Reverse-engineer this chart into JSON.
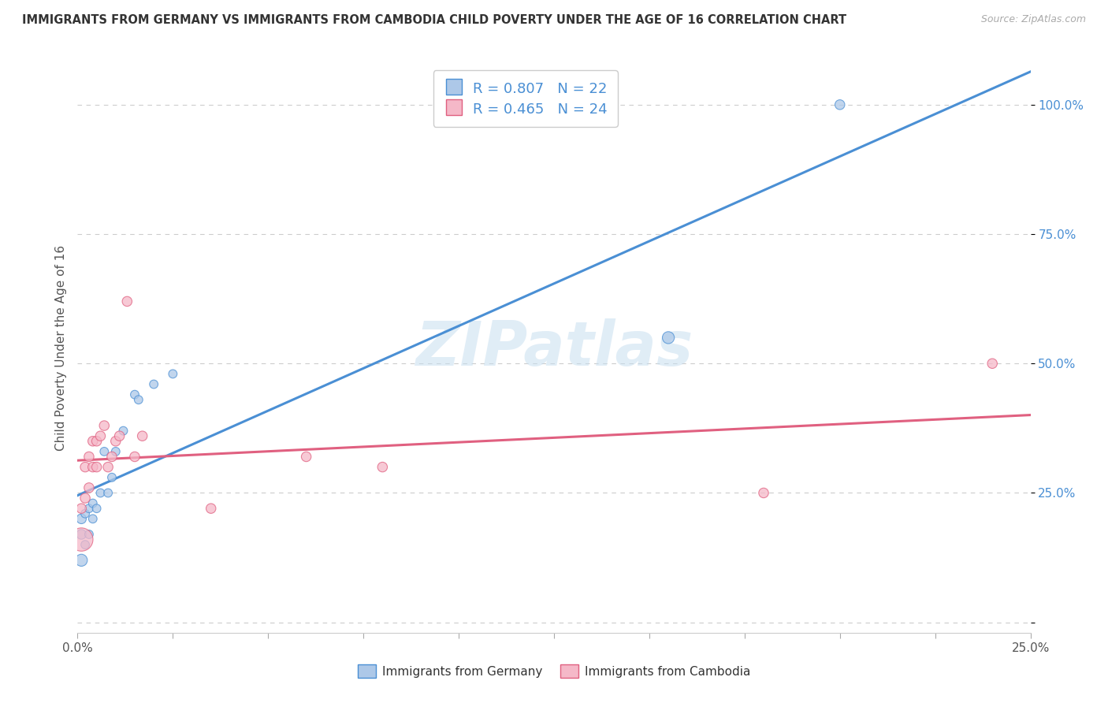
{
  "title": "IMMIGRANTS FROM GERMANY VS IMMIGRANTS FROM CAMBODIA CHILD POVERTY UNDER THE AGE OF 16 CORRELATION CHART",
  "source": "Source: ZipAtlas.com",
  "ylabel": "Child Poverty Under the Age of 16",
  "germany_R": 0.807,
  "germany_N": 22,
  "cambodia_R": 0.465,
  "cambodia_N": 24,
  "germany_color": "#adc8e8",
  "germany_line_color": "#4a8fd4",
  "cambodia_color": "#f5b8c8",
  "cambodia_line_color": "#e06080",
  "germany_x": [
    0.001,
    0.001,
    0.001,
    0.002,
    0.002,
    0.003,
    0.003,
    0.004,
    0.004,
    0.005,
    0.006,
    0.007,
    0.008,
    0.009,
    0.01,
    0.012,
    0.015,
    0.016,
    0.02,
    0.025,
    0.155,
    0.2
  ],
  "germany_y": [
    0.12,
    0.17,
    0.2,
    0.15,
    0.21,
    0.17,
    0.22,
    0.2,
    0.23,
    0.22,
    0.25,
    0.33,
    0.25,
    0.28,
    0.33,
    0.37,
    0.44,
    0.43,
    0.46,
    0.48,
    0.55,
    1.0
  ],
  "germany_size": [
    120,
    80,
    80,
    60,
    60,
    60,
    60,
    60,
    60,
    60,
    60,
    60,
    60,
    60,
    60,
    60,
    60,
    60,
    60,
    60,
    120,
    80
  ],
  "cambodia_x": [
    0.001,
    0.001,
    0.002,
    0.002,
    0.003,
    0.003,
    0.004,
    0.004,
    0.005,
    0.005,
    0.006,
    0.007,
    0.008,
    0.009,
    0.01,
    0.011,
    0.013,
    0.015,
    0.017,
    0.035,
    0.06,
    0.08,
    0.18,
    0.24
  ],
  "cambodia_y": [
    0.16,
    0.22,
    0.24,
    0.3,
    0.26,
    0.32,
    0.3,
    0.35,
    0.3,
    0.35,
    0.36,
    0.38,
    0.3,
    0.32,
    0.35,
    0.36,
    0.62,
    0.32,
    0.36,
    0.22,
    0.32,
    0.3,
    0.25,
    0.5
  ],
  "cambodia_size": [
    450,
    80,
    80,
    80,
    80,
    80,
    80,
    80,
    80,
    80,
    80,
    80,
    80,
    80,
    80,
    80,
    80,
    80,
    80,
    80,
    80,
    80,
    80,
    80
  ],
  "watermark": "ZIPatlas",
  "background_color": "#ffffff",
  "grid_color": "#cccccc",
  "xlim": [
    0.0,
    0.25
  ],
  "ylim": [
    -0.02,
    1.08
  ],
  "xticks": [
    0.0,
    0.025,
    0.05,
    0.075,
    0.1,
    0.125,
    0.15,
    0.175,
    0.2,
    0.225,
    0.25
  ],
  "yticks": [
    0.0,
    0.25,
    0.5,
    0.75,
    1.0
  ]
}
